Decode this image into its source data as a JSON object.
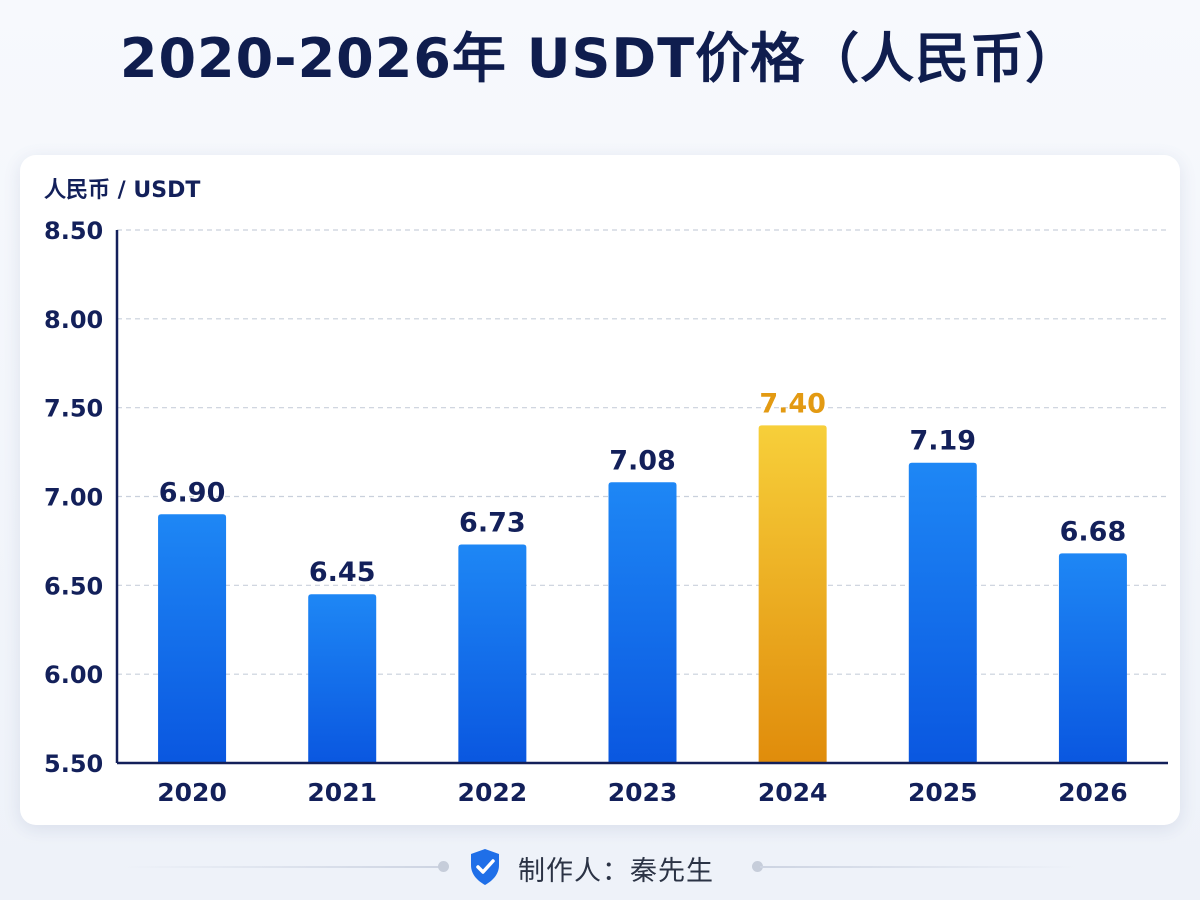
{
  "title": "2020-2026年 USDT价格（人民币）",
  "footer": {
    "credit": "制作人：秦先生",
    "icon": "shield-check-icon"
  },
  "colors": {
    "title": "#0f1d4e",
    "bar_blue_top": "#1e87f5",
    "bar_blue_bottom": "#0a57e0",
    "bar_highlight_top": "#f7cf3a",
    "bar_highlight_bottom": "#e08c0b",
    "highlight_label": "#e39a12",
    "label": "#13205a",
    "axis": "#13205a",
    "grid": "#c9d0dc"
  },
  "chart_data": {
    "type": "bar",
    "title": "2020-2026年 USDT价格（人民币）",
    "ylabel": "人民币 / USDT",
    "xlabel": "",
    "categories": [
      "2020",
      "2021",
      "2022",
      "2023",
      "2024",
      "2025",
      "2026"
    ],
    "values": [
      6.9,
      6.45,
      6.73,
      7.08,
      7.4,
      7.19,
      6.68
    ],
    "value_labels": [
      "6.90",
      "6.45",
      "6.73",
      "7.08",
      "7.40",
      "7.19",
      "6.68"
    ],
    "highlight_index": 4,
    "ylim": [
      5.5,
      8.5
    ],
    "yticks": [
      "8.50",
      "8.00",
      "7.50",
      "7.00",
      "6.50",
      "6.00",
      "5.50"
    ],
    "ytick_values": [
      8.5,
      8.0,
      7.5,
      7.0,
      6.5,
      6.0,
      5.5
    ],
    "grid": true,
    "legend": "none"
  }
}
